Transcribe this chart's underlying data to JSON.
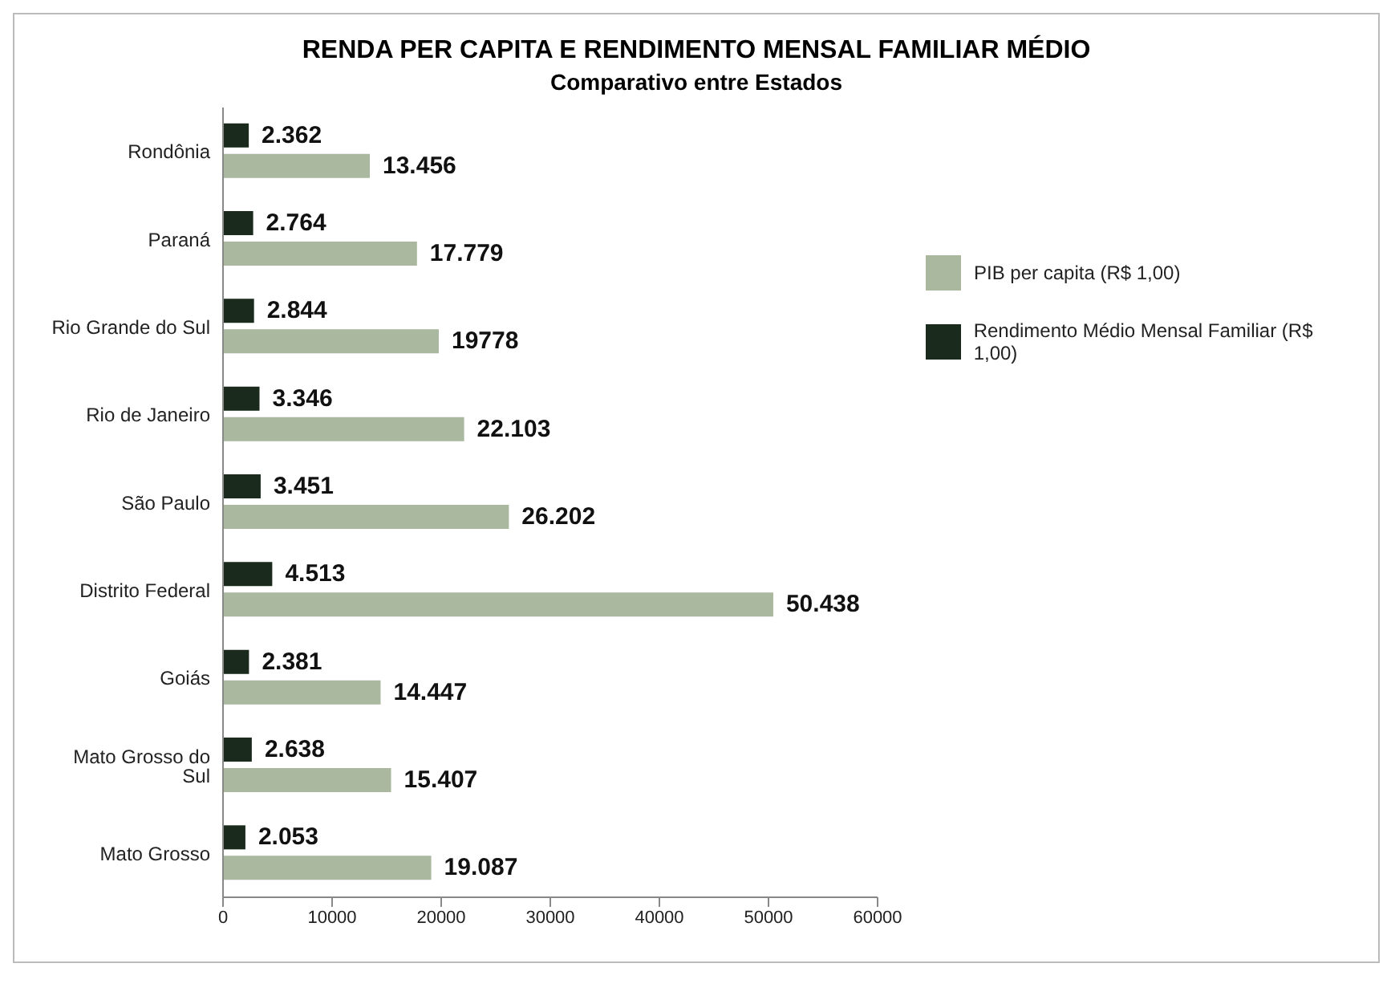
{
  "chart_data": {
    "type": "bar",
    "orientation": "horizontal",
    "title": "RENDA PER CAPITA E RENDIMENTO MENSAL FAMILIAR MÉDIO",
    "subtitle": "Comparativo entre Estados",
    "categories": [
      "Rondônia",
      "Paraná",
      "Rio Grande do Sul",
      "Rio de Janeiro",
      "São Paulo",
      "Distrito Federal",
      "Goiás",
      "Mato Grosso do Sul",
      "Mato Grosso"
    ],
    "series": [
      {
        "name": "PIB per capita (R$ 1,00)",
        "color": "#a9b89e",
        "values": [
          13456,
          17779,
          19778,
          22103,
          26202,
          50438,
          14447,
          15407,
          19087
        ],
        "value_labels": [
          "13.456",
          "17.779",
          "19778",
          "22.103",
          "26.202",
          "50.438",
          "14.447",
          "15.407",
          "19.087"
        ]
      },
      {
        "name": "Rendimento Médio Mensal Familiar (R$ 1,00)",
        "color": "#1a2a1c",
        "values": [
          2362,
          2764,
          2844,
          3346,
          3451,
          4513,
          2381,
          2638,
          2053
        ],
        "value_labels": [
          "2.362",
          "2.764",
          "2.844",
          "3.346",
          "3.451",
          "4.513",
          "2.381",
          "2.638",
          "2.053"
        ]
      }
    ],
    "xlim": [
      0,
      60000
    ],
    "xticks": [
      0,
      10000,
      20000,
      30000,
      40000,
      50000,
      60000
    ],
    "legend": "top right"
  }
}
